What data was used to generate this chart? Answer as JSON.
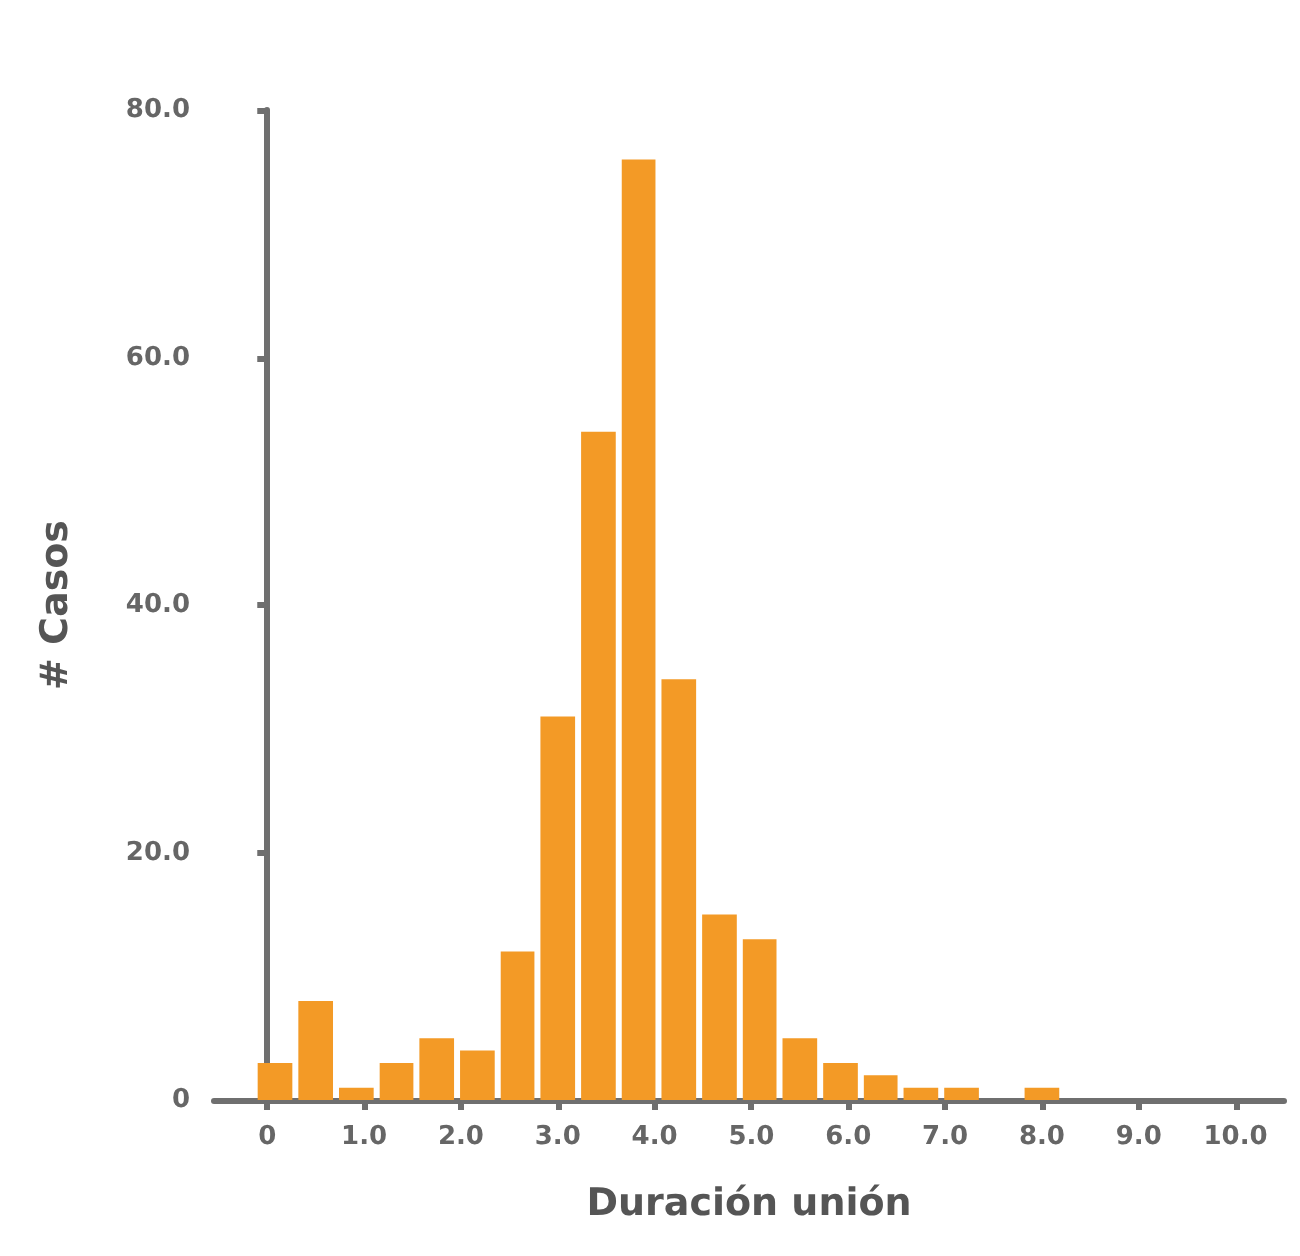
{
  "chart_data": {
    "type": "histogram",
    "xlabel": "Duración unión",
    "ylabel": "# Casos",
    "color": "#f39a26",
    "bins": [
      -0.13,
      0.29,
      0.71,
      1.13,
      1.54,
      1.96,
      2.38,
      2.79,
      3.21,
      3.63,
      4.04,
      4.46,
      4.88,
      5.29,
      5.71,
      6.13,
      6.54,
      6.96,
      7.38,
      7.79,
      8.21
    ],
    "values": [
      3,
      8,
      1,
      3,
      5,
      4,
      12,
      31,
      54,
      76,
      34,
      15,
      13,
      5,
      3,
      2,
      1,
      1,
      0,
      1
    ],
    "xlim": [
      -0.55,
      10.5
    ],
    "xticks": [
      0,
      {
        "value": 1,
        "label": "1.0"
      },
      {
        "value": 2,
        "label": "2.0"
      },
      {
        "value": 3,
        "label": "3.0"
      },
      {
        "value": 4,
        "label": "4.0"
      },
      {
        "value": 5,
        "label": "5.0"
      },
      {
        "value": 6,
        "label": "6.0"
      },
      {
        "value": 7,
        "label": "7.0"
      },
      {
        "value": 8,
        "label": "8.0"
      },
      {
        "value": 9,
        "label": "9.0"
      },
      {
        "value": 10,
        "label": "10.0"
      }
    ],
    "ylim": [
      0,
      80
    ],
    "yticks": [
      0,
      {
        "value": 20,
        "label": "20.0"
      },
      {
        "value": 40,
        "label": "40.0"
      },
      {
        "value": 60,
        "label": "60.0"
      },
      {
        "value": 80,
        "label": "80.0"
      }
    ]
  }
}
